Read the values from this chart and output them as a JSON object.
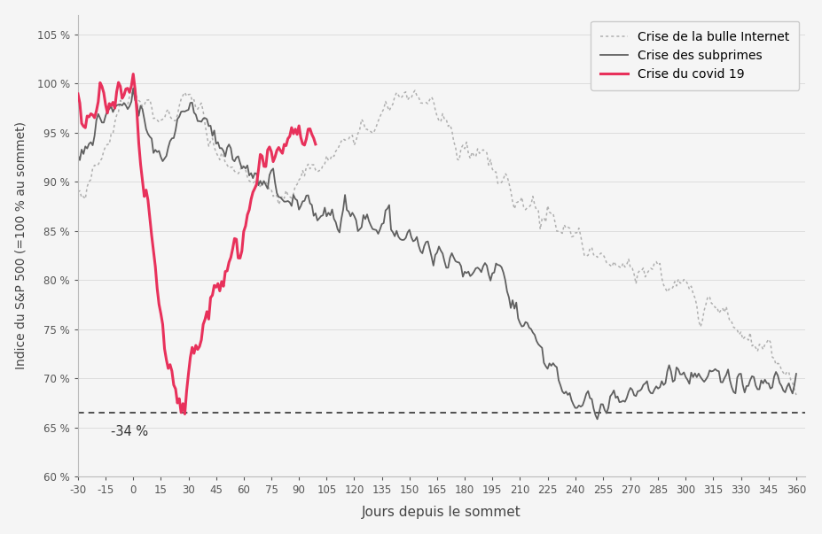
{
  "title": "",
  "xlabel": "Jours depuis le sommet",
  "ylabel": "Indice du S&P 500 (=100 % au sommet)",
  "xlim": [
    -30,
    365
  ],
  "ylim": [
    60,
    107
  ],
  "xticks": [
    -30,
    -15,
    0,
    15,
    30,
    45,
    60,
    75,
    90,
    105,
    120,
    135,
    150,
    165,
    180,
    195,
    210,
    225,
    240,
    255,
    270,
    285,
    300,
    315,
    330,
    345,
    360
  ],
  "yticks": [
    60,
    65,
    70,
    75,
    80,
    85,
    90,
    95,
    100,
    105
  ],
  "dotcom_color": "#b0b0b0",
  "subprime_color": "#606060",
  "covid_color": "#e8315b",
  "reference_line": 66.5,
  "reference_label": "-34 %",
  "background_color": "#f5f5f5",
  "legend_dotcom": "Crise de la bulle Internet",
  "legend_subprime": "Crise des subprimes",
  "legend_covid": "Crise du covid 19"
}
